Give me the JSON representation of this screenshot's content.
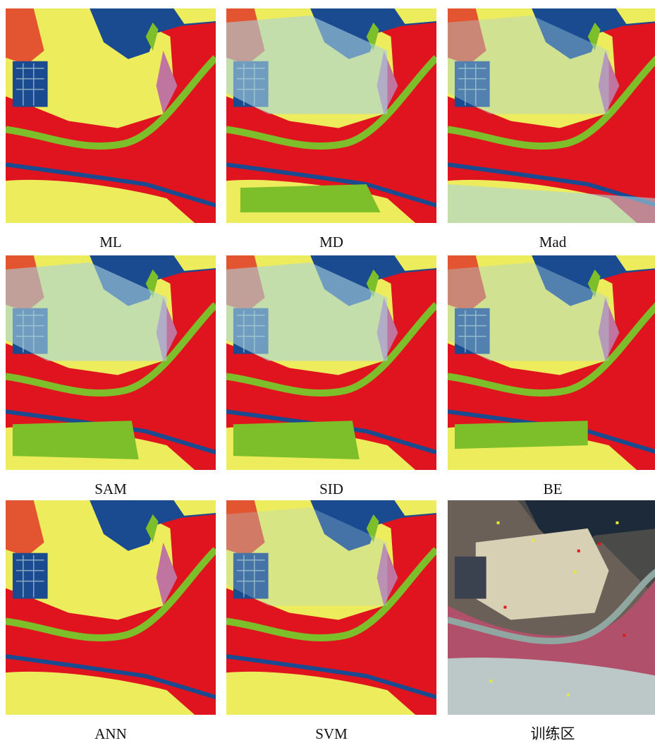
{
  "panels": [
    {
      "caption": "ML"
    },
    {
      "caption": "MD"
    },
    {
      "caption": "Mad"
    },
    {
      "caption": "SAM"
    },
    {
      "caption": "SID"
    },
    {
      "caption": "BE"
    },
    {
      "caption": "ANN"
    },
    {
      "caption": "SVM"
    },
    {
      "caption": "训练区"
    }
  ]
}
